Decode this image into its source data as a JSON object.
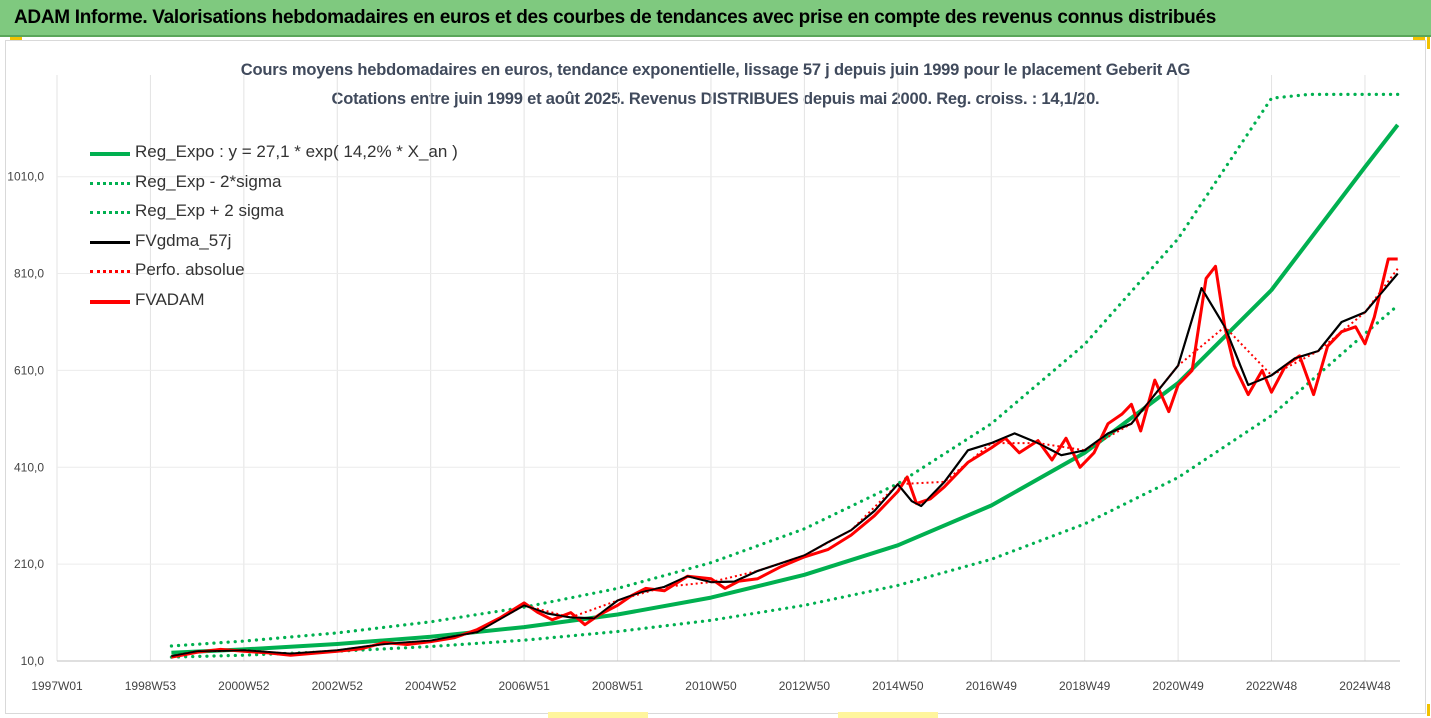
{
  "header": {
    "title": "ADAM Informe. Valorisations hebdomadaires en euros et des courbes de tendances avec prise en compte des revenus connus distribués"
  },
  "chart_data": {
    "type": "line",
    "title": "Cours moyens hebdomadaires en euros, tendance exponentielle, lissage 57 j depuis juin 1999 pour le placement Geberit AG",
    "subtitle": "Cotations entre juin 1999 et août 2025. Revenus DISTRIBUES depuis mai 2000. Reg. croiss. : 14,1/20.",
    "xlabel": "",
    "ylabel": "",
    "ylim": [
      10,
      1220
    ],
    "grid": true,
    "legend_position": "top-left",
    "yticks": [
      "10,0",
      "210,0",
      "410,0",
      "610,0",
      "810,0",
      "1010,0"
    ],
    "ytick_values": [
      10,
      210,
      410,
      610,
      810,
      1010
    ],
    "xticks": [
      "1997W01",
      "1998W53",
      "2000W52",
      "2002W52",
      "2004W52",
      "2006W51",
      "2008W51",
      "2010W50",
      "2012W50",
      "2014W50",
      "2016W49",
      "2018W49",
      "2020W49",
      "2022W48",
      "2024W48"
    ],
    "xtick_years": [
      1997.0,
      1999.0,
      2001.0,
      2003.0,
      2005.0,
      2007.0,
      2009.0,
      2011.0,
      2013.0,
      2015.0,
      2017.0,
      2019.0,
      2021.0,
      2023.0,
      2025.0
    ],
    "xlim": [
      1997.0,
      2025.75
    ],
    "series": [
      {
        "name": "Reg_Expo : y = 27,1 * exp( 14,2% *  X_an )",
        "color": "#00b050",
        "style": "solid",
        "x": [
          1999.45,
          2001,
          2003,
          2005,
          2007,
          2009,
          2011,
          2013,
          2015,
          2017,
          2019,
          2021,
          2023,
          2025,
          2025.7
        ],
        "values": [
          27,
          34,
          45,
          60,
          80,
          106,
          141,
          188,
          249,
          331,
          440,
          584,
          776,
          1030,
          1117
        ]
      },
      {
        "name": "Reg_Exp - 2*sigma",
        "color": "#00b050",
        "style": "dotted",
        "x": [
          1999.45,
          2001,
          2003,
          2005,
          2007,
          2009,
          2011,
          2013,
          2015,
          2017,
          2019,
          2021,
          2023,
          2025,
          2025.7
        ],
        "values": [
          18,
          22,
          30,
          40,
          53,
          71,
          94,
          125,
          166,
          220,
          293,
          389,
          517,
          686,
          744
        ]
      },
      {
        "name": "Reg_Exp + 2 sigma",
        "color": "#00b050",
        "style": "dotted",
        "x": [
          1999.45,
          2001,
          2003,
          2005,
          2007,
          2009,
          2011,
          2013,
          2015,
          2017,
          2019,
          2021,
          2023,
          2023.8,
          2025.7
        ],
        "values": [
          41,
          51,
          68,
          91,
          121,
          160,
          213,
          283,
          376,
          500,
          664,
          882,
          1172,
          1180,
          1180
        ]
      },
      {
        "name": "FVgdma_57j",
        "color": "#000000",
        "style": "solid",
        "x": [
          1999.45,
          2000.0,
          2001.0,
          2002.0,
          2003.0,
          2004.0,
          2005.0,
          2006.0,
          2007.0,
          2007.5,
          2008.0,
          2008.5,
          2009.0,
          2009.5,
          2010.0,
          2010.5,
          2011.0,
          2011.5,
          2012.0,
          2012.5,
          2013.0,
          2013.5,
          2014.0,
          2014.5,
          2015.0,
          2015.3,
          2015.5,
          2016.0,
          2016.5,
          2017.0,
          2017.5,
          2018.0,
          2018.5,
          2019.0,
          2019.5,
          2020.0,
          2020.5,
          2021.0,
          2021.5,
          2022.0,
          2022.5,
          2023.0,
          2023.5,
          2024.0,
          2024.5,
          2025.0,
          2025.7
        ],
        "values": [
          20,
          30,
          32,
          25,
          32,
          45,
          52,
          70,
          125,
          108,
          100,
          98,
          135,
          152,
          163,
          185,
          173,
          174,
          196,
          212,
          228,
          255,
          280,
          320,
          375,
          340,
          330,
          380,
          445,
          460,
          480,
          460,
          435,
          445,
          480,
          500,
          560,
          620,
          780,
          700,
          580,
          600,
          635,
          650,
          710,
          730,
          810
        ]
      },
      {
        "name": "Perfo. absolue",
        "color": "#ff0000",
        "style": "dotted",
        "x": [
          1999.45,
          2000.0,
          2001.0,
          2002.0,
          2003.0,
          2004.0,
          2005.0,
          2006.0,
          2007.0,
          2008.0,
          2009.0,
          2010.0,
          2011.0,
          2012.0,
          2013.0,
          2014.0,
          2015.0,
          2016.0,
          2017.0,
          2018.0,
          2019.0,
          2020.0,
          2021.0,
          2022.0,
          2023.0,
          2024.0,
          2025.0,
          2025.7
        ],
        "values": [
          20,
          30,
          32,
          25,
          32,
          45,
          52,
          70,
          125,
          100,
          135,
          163,
          173,
          196,
          228,
          280,
          375,
          380,
          460,
          460,
          445,
          500,
          620,
          700,
          600,
          650,
          730,
          820
        ]
      },
      {
        "name": "FVADAM",
        "color": "#ff0000",
        "style": "solid",
        "x": [
          1999.45,
          2000.0,
          2000.5,
          2001.0,
          2001.5,
          2002.0,
          2002.5,
          2003.0,
          2003.5,
          2004.0,
          2004.5,
          2005.0,
          2005.5,
          2006.0,
          2006.5,
          2007.0,
          2007.3,
          2007.6,
          2008.0,
          2008.3,
          2008.6,
          2009.0,
          2009.3,
          2009.6,
          2010.0,
          2010.5,
          2011.0,
          2011.3,
          2011.6,
          2012.0,
          2012.5,
          2013.0,
          2013.5,
          2014.0,
          2014.5,
          2015.0,
          2015.2,
          2015.4,
          2015.7,
          2016.0,
          2016.5,
          2017.0,
          2017.3,
          2017.6,
          2018.0,
          2018.3,
          2018.6,
          2018.9,
          2019.2,
          2019.5,
          2019.8,
          2020.0,
          2020.2,
          2020.5,
          2020.8,
          2021.0,
          2021.3,
          2021.6,
          2021.8,
          2022.0,
          2022.2,
          2022.5,
          2022.8,
          2023.0,
          2023.3,
          2023.6,
          2023.9,
          2024.2,
          2024.5,
          2024.8,
          2025.0,
          2025.2,
          2025.5,
          2025.7
        ],
        "values": [
          18,
          28,
          34,
          30,
          27,
          22,
          26,
          30,
          35,
          48,
          44,
          50,
          58,
          75,
          100,
          130,
          110,
          95,
          110,
          85,
          105,
          125,
          145,
          160,
          155,
          185,
          180,
          160,
          175,
          180,
          205,
          225,
          240,
          270,
          310,
          360,
          390,
          335,
          345,
          370,
          420,
          450,
          470,
          440,
          465,
          425,
          470,
          410,
          440,
          500,
          520,
          540,
          485,
          590,
          525,
          580,
          610,
          800,
          825,
          700,
          620,
          560,
          610,
          565,
          620,
          640,
          560,
          660,
          690,
          700,
          665,
          720,
          840,
          840
        ]
      }
    ]
  }
}
